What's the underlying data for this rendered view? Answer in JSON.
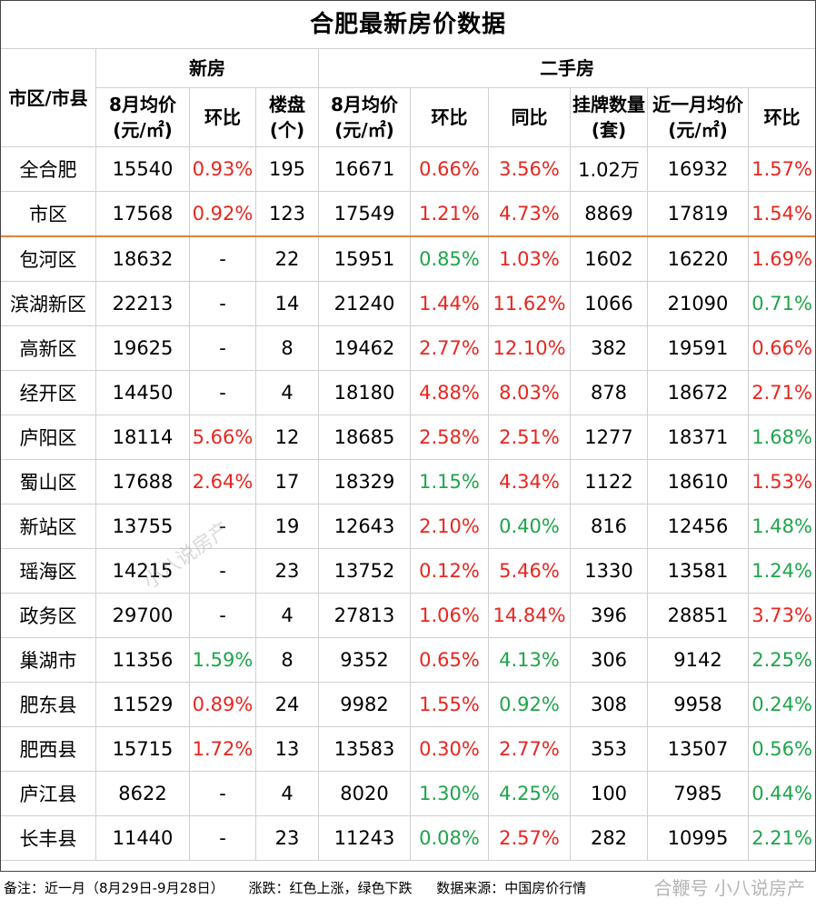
{
  "title": "合肥最新房价数据",
  "headers": {
    "district": "市区/市县",
    "new_group": "新房",
    "second_group": "二手房",
    "new_price": "8月均价(元/㎡)",
    "new_mom": "环比",
    "new_projects": "楼盘(个)",
    "sh_price": "8月均价(元/㎡)",
    "sh_mom": "环比",
    "sh_yoy": "同比",
    "sh_listings": "挂牌数量(套)",
    "sh_recent": "近一月均价(元/㎡)",
    "sh_recent_mom": "环比"
  },
  "rows": [
    {
      "name": "全合肥",
      "np": "15540",
      "nm": "0.93%",
      "nmc": "red",
      "npj": "195",
      "sp": "16671",
      "sm": "0.66%",
      "smc": "red",
      "sy": "3.56%",
      "syc": "red",
      "sl": "1.02万",
      "sr": "16932",
      "srm": "1.57%",
      "srmc": "red"
    },
    {
      "name": "市区",
      "np": "17568",
      "nm": "0.92%",
      "nmc": "red",
      "npj": "123",
      "sp": "17549",
      "sm": "1.21%",
      "smc": "red",
      "sy": "4.73%",
      "syc": "red",
      "sl": "8869",
      "sr": "17819",
      "srm": "1.54%",
      "srmc": "red"
    },
    {
      "name": "包河区",
      "np": "18632",
      "nm": "-",
      "nmc": "",
      "npj": "22",
      "sp": "15951",
      "sm": "0.85%",
      "smc": "green",
      "sy": "1.03%",
      "syc": "red",
      "sl": "1602",
      "sr": "16220",
      "srm": "1.69%",
      "srmc": "red"
    },
    {
      "name": "滨湖新区",
      "np": "22213",
      "nm": "-",
      "nmc": "",
      "npj": "14",
      "sp": "21240",
      "sm": "1.44%",
      "smc": "red",
      "sy": "11.62%",
      "syc": "red",
      "sl": "1066",
      "sr": "21090",
      "srm": "0.71%",
      "srmc": "green"
    },
    {
      "name": "高新区",
      "np": "19625",
      "nm": "-",
      "nmc": "",
      "npj": "8",
      "sp": "19462",
      "sm": "2.77%",
      "smc": "red",
      "sy": "12.10%",
      "syc": "red",
      "sl": "382",
      "sr": "19591",
      "srm": "0.66%",
      "srmc": "red"
    },
    {
      "name": "经开区",
      "np": "14450",
      "nm": "-",
      "nmc": "",
      "npj": "4",
      "sp": "18180",
      "sm": "4.88%",
      "smc": "red",
      "sy": "8.03%",
      "syc": "red",
      "sl": "878",
      "sr": "18672",
      "srm": "2.71%",
      "srmc": "red"
    },
    {
      "name": "庐阳区",
      "np": "18114",
      "nm": "5.66%",
      "nmc": "red",
      "npj": "12",
      "sp": "18685",
      "sm": "2.58%",
      "smc": "red",
      "sy": "2.51%",
      "syc": "red",
      "sl": "1277",
      "sr": "18371",
      "srm": "1.68%",
      "srmc": "green"
    },
    {
      "name": "蜀山区",
      "np": "17688",
      "nm": "2.64%",
      "nmc": "red",
      "npj": "17",
      "sp": "18329",
      "sm": "1.15%",
      "smc": "green",
      "sy": "4.34%",
      "syc": "red",
      "sl": "1122",
      "sr": "18610",
      "srm": "1.53%",
      "srmc": "red"
    },
    {
      "name": "新站区",
      "np": "13755",
      "nm": "-",
      "nmc": "",
      "npj": "19",
      "sp": "12643",
      "sm": "2.10%",
      "smc": "red",
      "sy": "0.40%",
      "syc": "green",
      "sl": "816",
      "sr": "12456",
      "srm": "1.48%",
      "srmc": "green"
    },
    {
      "name": "瑶海区",
      "np": "14215",
      "nm": "-",
      "nmc": "",
      "npj": "23",
      "sp": "13752",
      "sm": "0.12%",
      "smc": "red",
      "sy": "5.46%",
      "syc": "red",
      "sl": "1330",
      "sr": "13581",
      "srm": "1.24%",
      "srmc": "green"
    },
    {
      "name": "政务区",
      "np": "29700",
      "nm": "-",
      "nmc": "",
      "npj": "4",
      "sp": "27813",
      "sm": "1.06%",
      "smc": "red",
      "sy": "14.84%",
      "syc": "red",
      "sl": "396",
      "sr": "28851",
      "srm": "3.73%",
      "srmc": "red"
    },
    {
      "name": "巢湖市",
      "np": "11356",
      "nm": "1.59%",
      "nmc": "green",
      "npj": "8",
      "sp": "9352",
      "sm": "0.65%",
      "smc": "red",
      "sy": "4.13%",
      "syc": "green",
      "sl": "306",
      "sr": "9142",
      "srm": "2.25%",
      "srmc": "green"
    },
    {
      "name": "肥东县",
      "np": "11529",
      "nm": "0.89%",
      "nmc": "red",
      "npj": "24",
      "sp": "9982",
      "sm": "1.55%",
      "smc": "red",
      "sy": "0.92%",
      "syc": "green",
      "sl": "308",
      "sr": "9958",
      "srm": "0.24%",
      "srmc": "green"
    },
    {
      "name": "肥西县",
      "np": "15715",
      "nm": "1.72%",
      "nmc": "red",
      "npj": "13",
      "sp": "13583",
      "sm": "0.30%",
      "smc": "red",
      "sy": "2.77%",
      "syc": "red",
      "sl": "353",
      "sr": "13507",
      "srm": "0.56%",
      "srmc": "green"
    },
    {
      "name": "庐江县",
      "np": "8622",
      "nm": "-",
      "nmc": "",
      "npj": "4",
      "sp": "8020",
      "sm": "1.30%",
      "smc": "green",
      "sy": "4.25%",
      "syc": "green",
      "sl": "100",
      "sr": "7985",
      "srm": "0.44%",
      "srmc": "green"
    },
    {
      "name": "长丰县",
      "np": "11440",
      "nm": "-",
      "nmc": "",
      "npj": "23",
      "sp": "11243",
      "sm": "0.08%",
      "smc": "green",
      "sy": "2.57%",
      "syc": "red",
      "sl": "282",
      "sr": "10995",
      "srm": "2.21%",
      "srmc": "green"
    }
  ],
  "footer": {
    "note": "备注：近一月（8月29日-9月28日）",
    "legend": "涨跌：红色上涨，绿色下跌",
    "source": "数据来源：中国房价行情"
  },
  "watermark": {
    "diagonal": "小八说房产",
    "corner": "合鞭号 小八说房产"
  },
  "colors": {
    "up": "#e8261f",
    "down": "#1ea54a",
    "separator": "#e0813a"
  }
}
